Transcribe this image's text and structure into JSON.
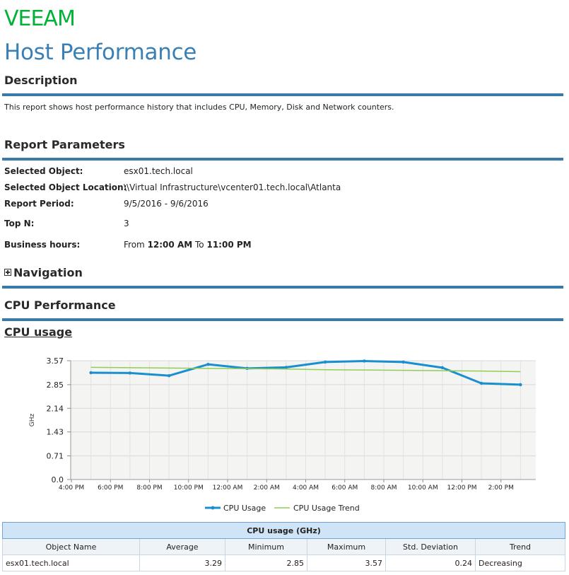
{
  "brand": {
    "logo_text": "VEEAM",
    "logo_color": "#00b336"
  },
  "page": {
    "title": "Host Performance"
  },
  "description": {
    "heading": "Description",
    "text": "This report shows host performance history that includes CPU, Memory, Disk and Network counters."
  },
  "parameters": {
    "heading": "Report Parameters",
    "items": [
      {
        "label": "Selected Object:",
        "value": "esx01.tech.local"
      },
      {
        "label": "Selected Object Location:",
        "value": "\\\\Virtual Infrastructure\\vcenter01.tech.local\\Atlanta"
      },
      {
        "label": "Report Period:",
        "value": "9/5/2016 - 9/6/2016"
      },
      {
        "label": "Top N:",
        "value": "3"
      },
      {
        "label": "Business hours:",
        "from_text": "From",
        "from_value": "12:00 AM",
        "to_text": "To",
        "to_value": "11:00 PM"
      }
    ]
  },
  "navigation": {
    "heading": "Navigation"
  },
  "cpu_performance": {
    "heading": "CPU Performance"
  },
  "cpu_usage": {
    "heading": "CPU usage"
  },
  "colors": {
    "accent_rule": "#3a7aa8",
    "title_blue": "#3a80b4",
    "series_usage": "#1a8fd0",
    "series_trend": "#8fce57"
  },
  "chart_data": {
    "type": "line",
    "ylabel": "GHz",
    "xlabel": "",
    "ylim": [
      0,
      3.57
    ],
    "y_ticks": [
      "0.0",
      "0.71",
      "1.43",
      "2.14",
      "2.85",
      "3.57"
    ],
    "x_ticks": [
      "6:00 PM",
      "8:00 PM",
      "10:00 PM",
      "12:00 AM",
      "2:00 AM",
      "4:00 AM",
      "6:00 AM",
      "8:00 AM",
      "10:00 AM",
      "12:00 PM",
      "2:00 PM",
      "4:00 PM"
    ],
    "grid": true,
    "legend_position": "bottom",
    "x": [
      "5:00 PM",
      "7:00 PM",
      "9:00 PM",
      "11:00 PM",
      "1:00 AM",
      "3:00 AM",
      "5:00 AM",
      "7:00 AM",
      "9:00 AM",
      "11:00 AM",
      "1:00 PM",
      "3:00 PM"
    ],
    "series": [
      {
        "name": "CPU Usage",
        "values": [
          3.21,
          3.2,
          3.12,
          3.46,
          3.34,
          3.37,
          3.53,
          3.56,
          3.53,
          3.36,
          2.89,
          2.85
        ]
      },
      {
        "name": "CPU Usage Trend",
        "values": [
          3.37,
          3.36,
          3.35,
          3.34,
          3.33,
          3.32,
          3.3,
          3.29,
          3.28,
          3.27,
          3.26,
          3.24
        ]
      }
    ]
  },
  "table": {
    "caption": "CPU usage (GHz)",
    "columns": [
      "Object Name",
      "Average",
      "Minimum",
      "Maximum",
      "Std. Deviation",
      "Trend"
    ],
    "rows": [
      [
        "esx01.tech.local",
        "3.29",
        "2.85",
        "3.57",
        "0.24",
        "Decreasing"
      ]
    ]
  }
}
